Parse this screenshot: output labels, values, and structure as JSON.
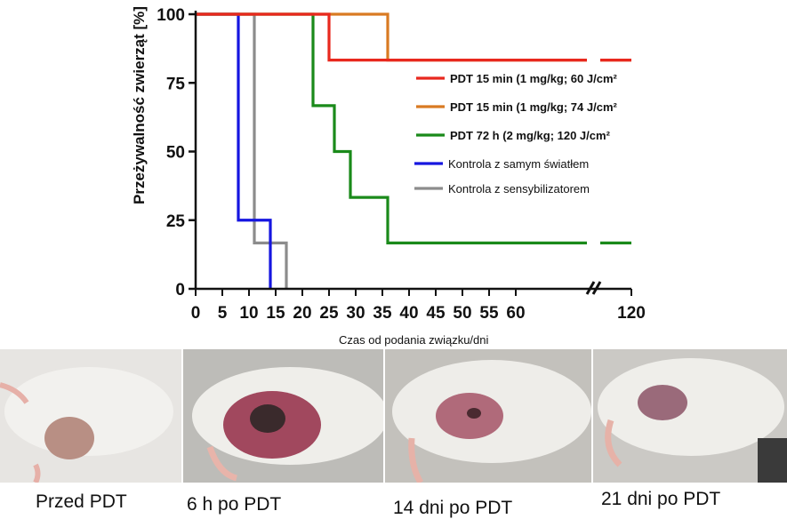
{
  "chart_data": {
    "type": "line",
    "subtype": "kaplan-meier-step",
    "ylabel": "Przeżywalność zwierząt  [%]",
    "xlabel": "Czas od podania związku/dni",
    "ylim": [
      0,
      100
    ],
    "yticks": [
      "0",
      "25",
      "50",
      "75",
      "100"
    ],
    "xticks": [
      "0",
      "5",
      "10",
      "15",
      "20",
      "25",
      "30",
      "35",
      "40",
      "45",
      "50",
      "55",
      "60",
      "120"
    ],
    "x_axis_break": "60-120",
    "legend_position": "center-right",
    "series": [
      {
        "name": "PDT 15 min (1 mg/kg; 60 J/cm²",
        "color": "#e8281e",
        "steps": [
          [
            0,
            100
          ],
          [
            25,
            83.3
          ],
          [
            60,
            83.3
          ],
          [
            120,
            83.3
          ]
        ]
      },
      {
        "name": "PDT 15 min (1 mg/kg; 74 J/cm²",
        "color": "#d97a22",
        "steps": [
          [
            0,
            100
          ],
          [
            36,
            83.3
          ],
          [
            60,
            83.3
          ],
          [
            120,
            83.3
          ]
        ]
      },
      {
        "name": "PDT 72  h    (2 mg/kg; 120 J/cm²",
        "color": "#1a8a1a",
        "steps": [
          [
            0,
            100
          ],
          [
            22,
            66.7
          ],
          [
            26,
            50
          ],
          [
            29,
            33.3
          ],
          [
            36,
            16.7
          ],
          [
            60,
            16.7
          ],
          [
            120,
            16.7
          ]
        ]
      },
      {
        "name": "Kontrola z samym światłem",
        "color": "#1616e0",
        "steps": [
          [
            0,
            100
          ],
          [
            8,
            25
          ],
          [
            14,
            0
          ]
        ]
      },
      {
        "name": "Kontrola z sensybilizatorem",
        "color": "#8c8c8c",
        "steps": [
          [
            0,
            100
          ],
          [
            11,
            16.7
          ],
          [
            17,
            0
          ]
        ]
      }
    ]
  },
  "photos": [
    {
      "caption": "Przed PDT"
    },
    {
      "caption": "6 h po PDT"
    },
    {
      "caption": "14 dni po PDT"
    },
    {
      "caption": "21 dni po PDT"
    }
  ]
}
